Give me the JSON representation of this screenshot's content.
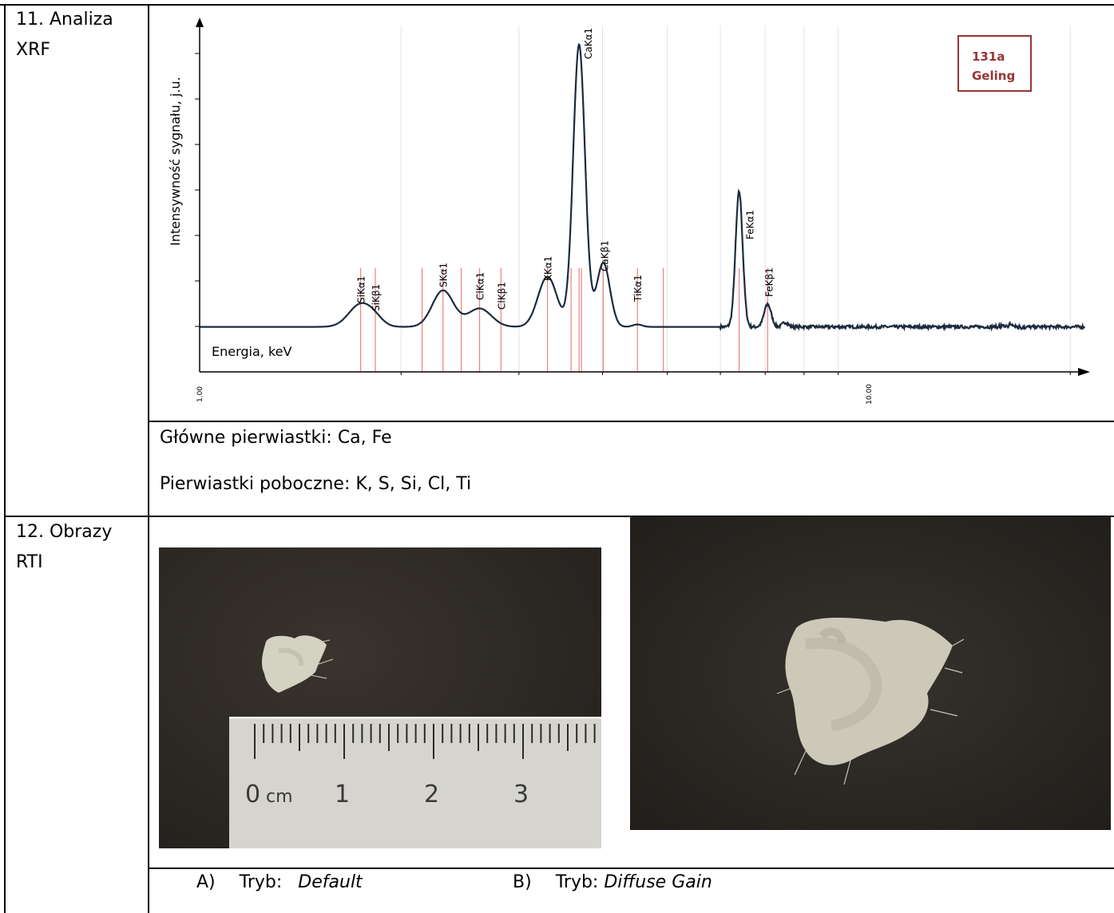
{
  "rows": [
    {
      "label_line1": "11. Analiza",
      "label_line2": "XRF",
      "elements": {
        "main": "Główne pierwiastki: Ca, Fe",
        "secondary": "Pierwiastki poboczne: K, S, Si, Cl, Ti"
      }
    },
    {
      "label_line1": "12. Obrazy",
      "label_line2": "RTI",
      "caption_a": {
        "letter": "A)",
        "prefix": "Tryb:",
        "mode": "Default"
      },
      "caption_b": {
        "letter": "B)",
        "prefix": "Tryb:",
        "mode": "Diffuse Gain"
      }
    }
  ],
  "chart_data": {
    "type": "line",
    "xlabel": "Energia, keV",
    "ylabel": "Intensywność sygnału, j.u.",
    "x_scale": "log",
    "xlim": [
      1.0,
      21.0
    ],
    "ylim": [
      0,
      100
    ],
    "x_tick_labels": [
      "1.00",
      "10.00"
    ],
    "sample_label": {
      "line1": "131a",
      "line2": "Geling"
    },
    "colors": {
      "spectrum": "#1c2b3e",
      "markers": "#f08080",
      "sample_box": "#963634"
    },
    "series": [
      {
        "baseline": 13,
        "peaks": [
          {
            "x": 1.74,
            "y": 19.5,
            "w": 0.05
          },
          {
            "x": 1.83,
            "y": 14.5,
            "w": 0.035
          },
          {
            "x": 2.31,
            "y": 23.5,
            "w": 0.045
          },
          {
            "x": 2.62,
            "y": 18.3,
            "w": 0.05
          },
          {
            "x": 3.31,
            "y": 27.5,
            "w": 0.04
          },
          {
            "x": 3.69,
            "y": 94.5,
            "w": 0.025
          },
          {
            "x": 4.01,
            "y": 31.5,
            "w": 0.028
          },
          {
            "x": 4.51,
            "y": 13.7,
            "w": 0.02
          },
          {
            "x": 6.4,
            "y": 52.0,
            "w": 0.015
          },
          {
            "x": 7.06,
            "y": 19.5,
            "w": 0.015
          },
          {
            "x": 7.5,
            "y": 14.3,
            "w": 0.012
          },
          {
            "x": 16.3,
            "y": 13.6,
            "w": 0.01
          }
        ]
      }
    ],
    "marker_lines": [
      1.74,
      1.83,
      2.15,
      2.31,
      2.46,
      2.62,
      2.82,
      3.31,
      3.59,
      3.69,
      3.72,
      4.01,
      4.51,
      4.93,
      6.4,
      7.06
    ],
    "peak_labels": [
      {
        "text": "SiKα1",
        "x": 1.74
      },
      {
        "text": "SiKβ1",
        "x": 1.83
      },
      {
        "text": "SKα1",
        "x": 2.31
      },
      {
        "text": "ClKα1",
        "x": 2.62
      },
      {
        "text": "ClKβ1",
        "x": 2.82
      },
      {
        "text": "KKα1",
        "x": 3.31
      },
      {
        "text": "CaKα1",
        "x": 3.69
      },
      {
        "text": "CaKβ1",
        "x": 4.01
      },
      {
        "text": "TiKα1",
        "x": 4.51
      },
      {
        "text": "FeKα1",
        "x": 6.4
      },
      {
        "text": "FeKβ1",
        "x": 7.06
      }
    ],
    "gridlines_x": [
      2,
      3,
      4,
      5,
      6,
      7,
      8,
      9,
      20
    ]
  },
  "scale_ruler": {
    "unit": "cm",
    "ticks": [
      "0",
      "1",
      "2",
      "3"
    ]
  }
}
